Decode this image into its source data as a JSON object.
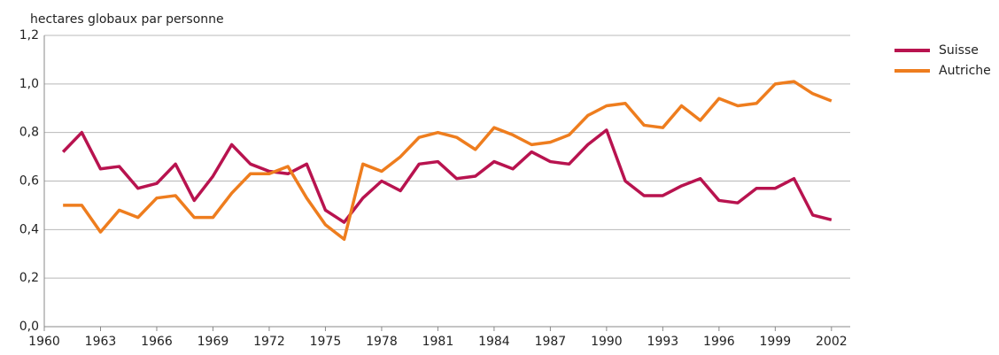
{
  "chart_data": {
    "type": "line",
    "y_label": "hectares globaux par personne",
    "x": [
      1961,
      1962,
      1963,
      1964,
      1965,
      1966,
      1967,
      1968,
      1969,
      1970,
      1971,
      1972,
      1973,
      1974,
      1975,
      1976,
      1977,
      1978,
      1979,
      1980,
      1981,
      1982,
      1983,
      1984,
      1985,
      1986,
      1987,
      1988,
      1989,
      1990,
      1991,
      1992,
      1993,
      1994,
      1995,
      1996,
      1997,
      1998,
      1999,
      2000,
      2001,
      2002
    ],
    "series": [
      {
        "name": "Suisse",
        "color": "#b8134f",
        "values": [
          0.72,
          0.8,
          0.65,
          0.66,
          0.57,
          0.59,
          0.67,
          0.52,
          0.62,
          0.75,
          0.67,
          0.64,
          0.63,
          0.67,
          0.48,
          0.43,
          0.53,
          0.6,
          0.56,
          0.67,
          0.68,
          0.61,
          0.62,
          0.68,
          0.65,
          0.72,
          0.68,
          0.67,
          0.75,
          0.81,
          0.6,
          0.54,
          0.54,
          0.58,
          0.61,
          0.52,
          0.51,
          0.57,
          0.57,
          0.61,
          0.46,
          0.44
        ]
      },
      {
        "name": "Autriche",
        "color": "#ee7d1e",
        "values": [
          0.5,
          0.5,
          0.39,
          0.48,
          0.45,
          0.53,
          0.54,
          0.45,
          0.45,
          0.55,
          0.63,
          0.63,
          0.66,
          0.53,
          0.42,
          0.36,
          0.67,
          0.64,
          0.7,
          0.78,
          0.8,
          0.78,
          0.73,
          0.82,
          0.79,
          0.75,
          0.76,
          0.79,
          0.87,
          0.91,
          0.92,
          0.83,
          0.82,
          0.91,
          0.85,
          0.94,
          0.91,
          0.92,
          1.0,
          1.01,
          0.96,
          0.93
        ]
      }
    ],
    "xlim": [
      1960,
      2003
    ],
    "xticks": [
      1960,
      1963,
      1966,
      1969,
      1972,
      1975,
      1978,
      1981,
      1984,
      1987,
      1990,
      1993,
      1996,
      1999,
      2002
    ],
    "ylim": [
      0,
      1.2
    ],
    "yticks": [
      {
        "value": 0,
        "label": "0,0"
      },
      {
        "value": 0.2,
        "label": "0,2"
      },
      {
        "value": 0.4,
        "label": "0,4"
      },
      {
        "value": 0.6,
        "label": "0,6"
      },
      {
        "value": 0.8,
        "label": "0,8"
      },
      {
        "value": 1.0,
        "label": "1,0"
      },
      {
        "value": 1.2,
        "label": "1,2"
      }
    ],
    "grid": true,
    "legend_position": "top-right"
  }
}
